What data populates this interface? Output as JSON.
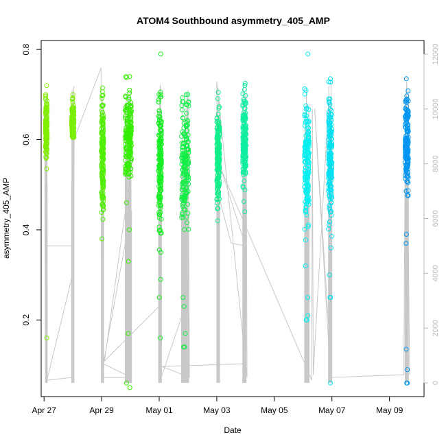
{
  "chart_data": {
    "type": "scatter",
    "title": "ATOM4 Southbound asymmetry_405_AMP",
    "xlabel": "Date",
    "ylabel": "asymmetry_405_AMP",
    "x_tick_labels": [
      "Apr 27",
      "Apr 29",
      "May 01",
      "May 03",
      "May 05",
      "May 07",
      "May 09"
    ],
    "x_ticks_days": [
      0,
      2,
      4,
      6,
      8,
      10,
      12
    ],
    "xlim_days": [
      -0.1,
      13.2
    ],
    "ylim": [
      0.03,
      0.82
    ],
    "y_ticks": [
      0.2,
      0.4,
      0.6,
      0.8
    ],
    "y_tick_labels": [
      "0.2",
      "0.4",
      "0.6",
      "0.8"
    ],
    "y2lim": [
      -500,
      12500
    ],
    "y2_ticks": [
      0,
      2000,
      4000,
      6000,
      8000,
      10000,
      12000
    ],
    "y2_tick_labels": [
      "0",
      "2000",
      "4000",
      "6000",
      "8000",
      "10000",
      "12000"
    ],
    "grid": false,
    "marker": "open-circle",
    "line_color": "#c8c8c8",
    "clusters": [
      {
        "x": 0.08,
        "width": 0.06,
        "center": 0.625,
        "spread": 0.03,
        "min": 0.535,
        "max": 0.72,
        "outliers": [
          0.16
        ],
        "color": "#80ee00"
      },
      {
        "x": 1.0,
        "width": 0.08,
        "center": 0.635,
        "spread": 0.02,
        "min": 0.605,
        "max": 0.7,
        "outliers": [],
        "color": "#7aee00"
      },
      {
        "x": 2.03,
        "width": 0.08,
        "center": 0.57,
        "spread": 0.06,
        "min": 0.38,
        "max": 0.715,
        "outliers": [],
        "color": "#50ee00"
      },
      {
        "x": 2.93,
        "width": 0.22,
        "center": 0.6,
        "spread": 0.05,
        "min": 0.46,
        "max": 0.74,
        "outliers": [
          0.06,
          0.05,
          0.17,
          0.33,
          0.4
        ],
        "color": "#33ee00"
      },
      {
        "x": 4.03,
        "width": 0.1,
        "center": 0.55,
        "spread": 0.08,
        "min": 0.29,
        "max": 0.79,
        "outliers": [
          0.16,
          0.25,
          0.35
        ],
        "color": "#16ee22"
      },
      {
        "x": 4.9,
        "width": 0.25,
        "center": 0.55,
        "spread": 0.07,
        "min": 0.14,
        "max": 0.7,
        "outliers": [
          0.14,
          0.17,
          0.23,
          0.25
        ],
        "color": "#12ee44"
      },
      {
        "x": 6.05,
        "width": 0.1,
        "center": 0.56,
        "spread": 0.05,
        "min": 0.42,
        "max": 0.705,
        "outliers": [],
        "color": "#10ee8a"
      },
      {
        "x": 6.96,
        "width": 0.12,
        "center": 0.6,
        "spread": 0.05,
        "min": 0.44,
        "max": 0.725,
        "outliers": [],
        "color": "#10eea0"
      },
      {
        "x": 9.13,
        "width": 0.16,
        "center": 0.55,
        "spread": 0.06,
        "min": 0.2,
        "max": 0.79,
        "outliers": [
          0.2,
          0.21,
          0.25,
          0.32
        ],
        "color": "#00f0f0"
      },
      {
        "x": 9.94,
        "width": 0.12,
        "center": 0.56,
        "spread": 0.06,
        "min": 0.25,
        "max": 0.735,
        "outliers": [
          0.06,
          0.25,
          0.3,
          0.36
        ],
        "color": "#00e0f0"
      },
      {
        "x": 12.6,
        "width": 0.12,
        "center": 0.58,
        "spread": 0.05,
        "min": 0.06,
        "max": 0.735,
        "outliers": [
          0.06,
          0.09,
          0.135,
          0.37,
          0.39
        ],
        "color": "#0096f0"
      }
    ],
    "index_line": [
      [
        0.02,
        10000
      ],
      [
        0.05,
        500
      ],
      [
        0.06,
        5000
      ],
      [
        0.97,
        5000
      ],
      [
        0.98,
        200
      ],
      [
        0.1,
        100
      ],
      [
        1.0,
        4000
      ],
      [
        1.05,
        9000
      ],
      [
        1.08,
        9000
      ],
      [
        1.98,
        11500
      ],
      [
        2.0,
        200
      ],
      [
        2.85,
        200
      ],
      [
        2.9,
        9500
      ],
      [
        2.95,
        10500
      ],
      [
        3.02,
        200
      ],
      [
        2.06,
        700
      ],
      [
        2.98,
        6000
      ],
      [
        2.99,
        8200
      ],
      [
        3.05,
        8000
      ],
      [
        2.1,
        800
      ],
      [
        4.0,
        2800
      ],
      [
        4.02,
        10700
      ],
      [
        4.05,
        10800
      ],
      [
        4.07,
        200
      ],
      [
        4.9,
        2800
      ],
      [
        5.0,
        10700
      ],
      [
        5.05,
        200
      ],
      [
        4.1,
        600
      ],
      [
        7.0,
        700
      ],
      [
        7.02,
        11000
      ],
      [
        7.05,
        200
      ],
      [
        6.0,
        11000
      ],
      [
        6.05,
        200
      ],
      [
        6.1,
        6700
      ],
      [
        6.5,
        5100
      ],
      [
        7.0,
        5000
      ],
      [
        6.15,
        7800
      ],
      [
        9.3,
        100
      ],
      [
        9.32,
        10000
      ],
      [
        9.35,
        300
      ],
      [
        9.9,
        10500
      ],
      [
        9.95,
        300
      ],
      [
        9.4,
        10000
      ],
      [
        10.0,
        200
      ],
      [
        12.5,
        300
      ],
      [
        12.55,
        10000
      ],
      [
        12.6,
        11000
      ],
      [
        12.7,
        300
      ]
    ]
  }
}
